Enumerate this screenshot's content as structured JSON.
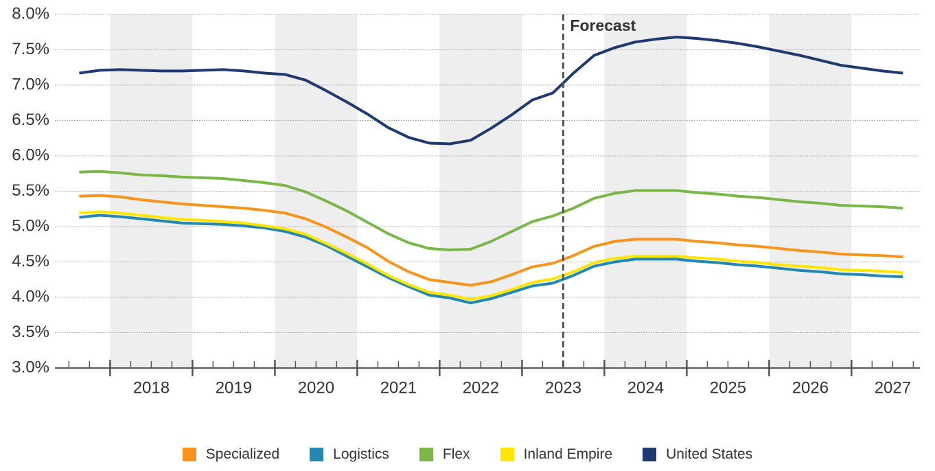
{
  "chart_data": {
    "type": "line",
    "x": [
      2017.625,
      2017.875,
      2018.125,
      2018.375,
      2018.625,
      2018.875,
      2019.125,
      2019.375,
      2019.625,
      2019.875,
      2020.125,
      2020.375,
      2020.625,
      2020.875,
      2021.125,
      2021.375,
      2021.625,
      2021.875,
      2022.125,
      2022.375,
      2022.625,
      2022.875,
      2023.125,
      2023.375,
      2023.625,
      2023.875,
      2024.125,
      2024.375,
      2024.625,
      2024.875,
      2025.125,
      2025.375,
      2025.625,
      2025.875,
      2026.125,
      2026.375,
      2026.625,
      2026.875,
      2027.125,
      2027.375,
      2027.625
    ],
    "series": [
      {
        "name": "Specialized",
        "color": "#f7941d",
        "values": [
          5.43,
          5.44,
          5.42,
          5.38,
          5.35,
          5.32,
          5.3,
          5.28,
          5.26,
          5.23,
          5.19,
          5.11,
          4.99,
          4.85,
          4.7,
          4.51,
          4.36,
          4.25,
          4.21,
          4.17,
          4.22,
          4.32,
          4.43,
          4.48,
          4.59,
          4.72,
          4.79,
          4.82,
          4.82,
          4.82,
          4.79,
          4.77,
          4.74,
          4.72,
          4.69,
          4.66,
          4.64,
          4.61,
          4.6,
          4.59,
          4.57
        ]
      },
      {
        "name": "Logistics",
        "color": "#2389b2",
        "values": [
          5.13,
          5.16,
          5.14,
          5.11,
          5.08,
          5.05,
          5.04,
          5.03,
          5.01,
          4.98,
          4.93,
          4.85,
          4.73,
          4.58,
          4.43,
          4.28,
          4.15,
          4.03,
          3.99,
          3.92,
          3.98,
          4.07,
          4.16,
          4.2,
          4.31,
          4.44,
          4.5,
          4.54,
          4.54,
          4.54,
          4.51,
          4.49,
          4.46,
          4.44,
          4.41,
          4.38,
          4.36,
          4.33,
          4.32,
          4.3,
          4.29
        ]
      },
      {
        "name": "Flex",
        "color": "#7ab648",
        "values": [
          5.77,
          5.78,
          5.76,
          5.73,
          5.72,
          5.7,
          5.69,
          5.68,
          5.65,
          5.62,
          5.58,
          5.49,
          5.36,
          5.22,
          5.06,
          4.9,
          4.77,
          4.69,
          4.67,
          4.68,
          4.79,
          4.93,
          5.07,
          5.15,
          5.26,
          5.4,
          5.47,
          5.51,
          5.51,
          5.51,
          5.48,
          5.46,
          5.43,
          5.41,
          5.38,
          5.35,
          5.33,
          5.3,
          5.29,
          5.28,
          5.26
        ]
      },
      {
        "name": "Inland Empire",
        "color": "#ffe500",
        "values": [
          5.19,
          5.21,
          5.19,
          5.16,
          5.13,
          5.1,
          5.09,
          5.07,
          5.05,
          5.01,
          4.97,
          4.89,
          4.76,
          4.62,
          4.47,
          4.31,
          4.18,
          4.07,
          4.03,
          3.97,
          4.02,
          4.11,
          4.21,
          4.26,
          4.36,
          4.49,
          4.55,
          4.58,
          4.58,
          4.58,
          4.56,
          4.54,
          4.51,
          4.49,
          4.46,
          4.44,
          4.42,
          4.39,
          4.38,
          4.37,
          4.35
        ]
      },
      {
        "name": "United States",
        "color": "#1f3a70",
        "values": [
          7.17,
          7.21,
          7.22,
          7.21,
          7.2,
          7.2,
          7.21,
          7.22,
          7.2,
          7.17,
          7.15,
          7.07,
          6.92,
          6.76,
          6.59,
          6.4,
          6.26,
          6.18,
          6.17,
          6.22,
          6.39,
          6.58,
          6.79,
          6.89,
          7.17,
          7.42,
          7.53,
          7.61,
          7.65,
          7.68,
          7.66,
          7.63,
          7.59,
          7.54,
          7.48,
          7.42,
          7.35,
          7.28,
          7.24,
          7.2,
          7.17
        ]
      }
    ],
    "xlim": [
      2017.33,
      2027.83
    ],
    "xticks": [
      {
        "value": 2018.5,
        "label": "2018"
      },
      {
        "value": 2019.5,
        "label": "2019"
      },
      {
        "value": 2020.5,
        "label": "2020"
      },
      {
        "value": 2021.5,
        "label": "2021"
      },
      {
        "value": 2022.5,
        "label": "2022"
      },
      {
        "value": 2023.5,
        "label": "2023"
      },
      {
        "value": 2024.5,
        "label": "2024"
      },
      {
        "value": 2025.5,
        "label": "2025"
      },
      {
        "value": 2026.5,
        "label": "2026"
      },
      {
        "value": 2027.5,
        "label": "2027"
      }
    ],
    "ylim": [
      3.0,
      8.0
    ],
    "yticks": [
      {
        "value": 3.0,
        "label": "3.0%"
      },
      {
        "value": 3.5,
        "label": "3.5%"
      },
      {
        "value": 4.0,
        "label": "4.0%"
      },
      {
        "value": 4.5,
        "label": "4.5%"
      },
      {
        "value": 5.0,
        "label": "5.0%"
      },
      {
        "value": 5.5,
        "label": "5.5%"
      },
      {
        "value": 6.0,
        "label": "6.0%"
      },
      {
        "value": 6.5,
        "label": "6.5%"
      },
      {
        "value": 7.0,
        "label": "7.0%"
      },
      {
        "value": 7.5,
        "label": "7.5%"
      },
      {
        "value": 8.0,
        "label": "8.0%"
      }
    ],
    "grid": true,
    "forecast": {
      "x": 2023.5,
      "label": "Forecast"
    },
    "legend": "bottom"
  }
}
